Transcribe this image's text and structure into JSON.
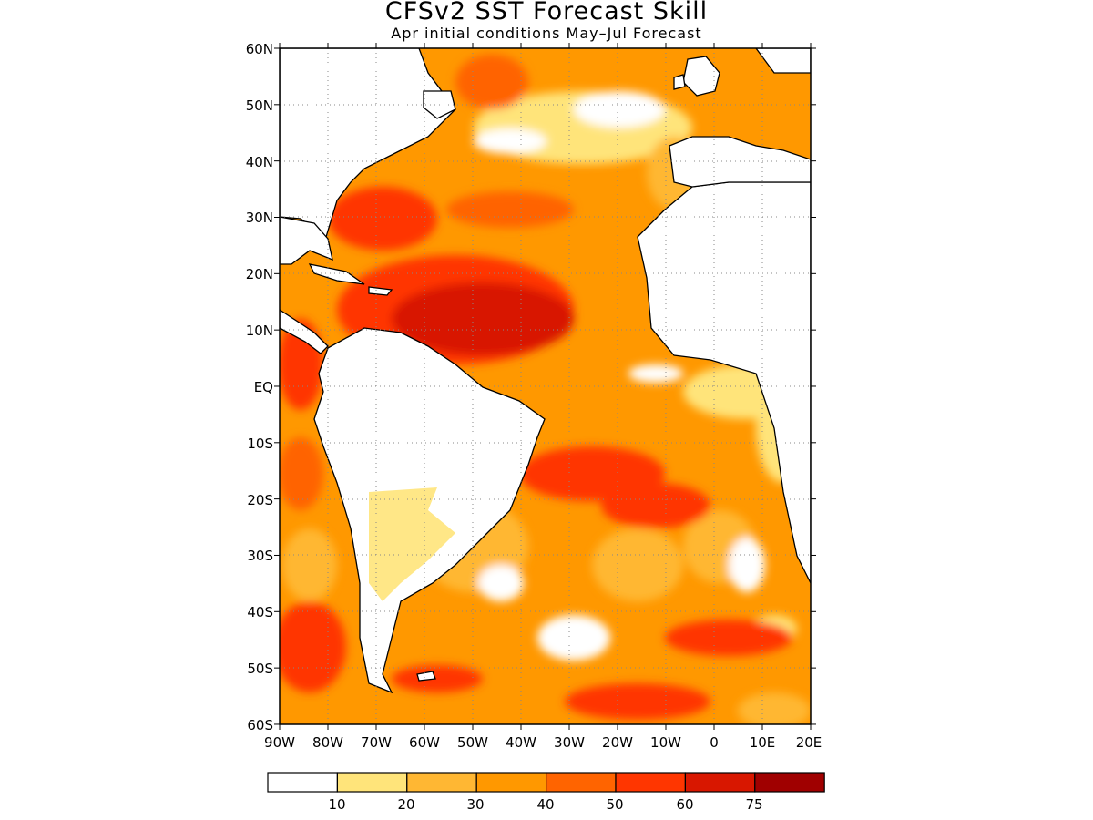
{
  "title": "CFSv2 SST Forecast Skill",
  "subtitle": "Apr initial conditions  May–Jul Forecast",
  "map": {
    "lat_labels": [
      "60N",
      "50N",
      "40N",
      "30N",
      "20N",
      "10N",
      "EQ",
      "10S",
      "20S",
      "30S",
      "40S",
      "50S",
      "60S"
    ],
    "lon_labels": [
      "90W",
      "80W",
      "70W",
      "60W",
      "50W",
      "40W",
      "30W",
      "20W",
      "10W",
      "0",
      "10E",
      "20E"
    ],
    "lon_range": [
      -90,
      20
    ],
    "lat_range": [
      -60,
      60
    ],
    "grid": "dotted",
    "colors": {
      "land": "#ffffff",
      "coastline": "#000000"
    }
  },
  "colorbar": {
    "labels": [
      "10",
      "20",
      "30",
      "40",
      "50",
      "60",
      "75"
    ],
    "colors": [
      "#ffffff",
      "#ffe47a",
      "#ffb733",
      "#ff9800",
      "#ff6400",
      "#ff3600",
      "#d81700",
      "#a00000"
    ]
  }
}
